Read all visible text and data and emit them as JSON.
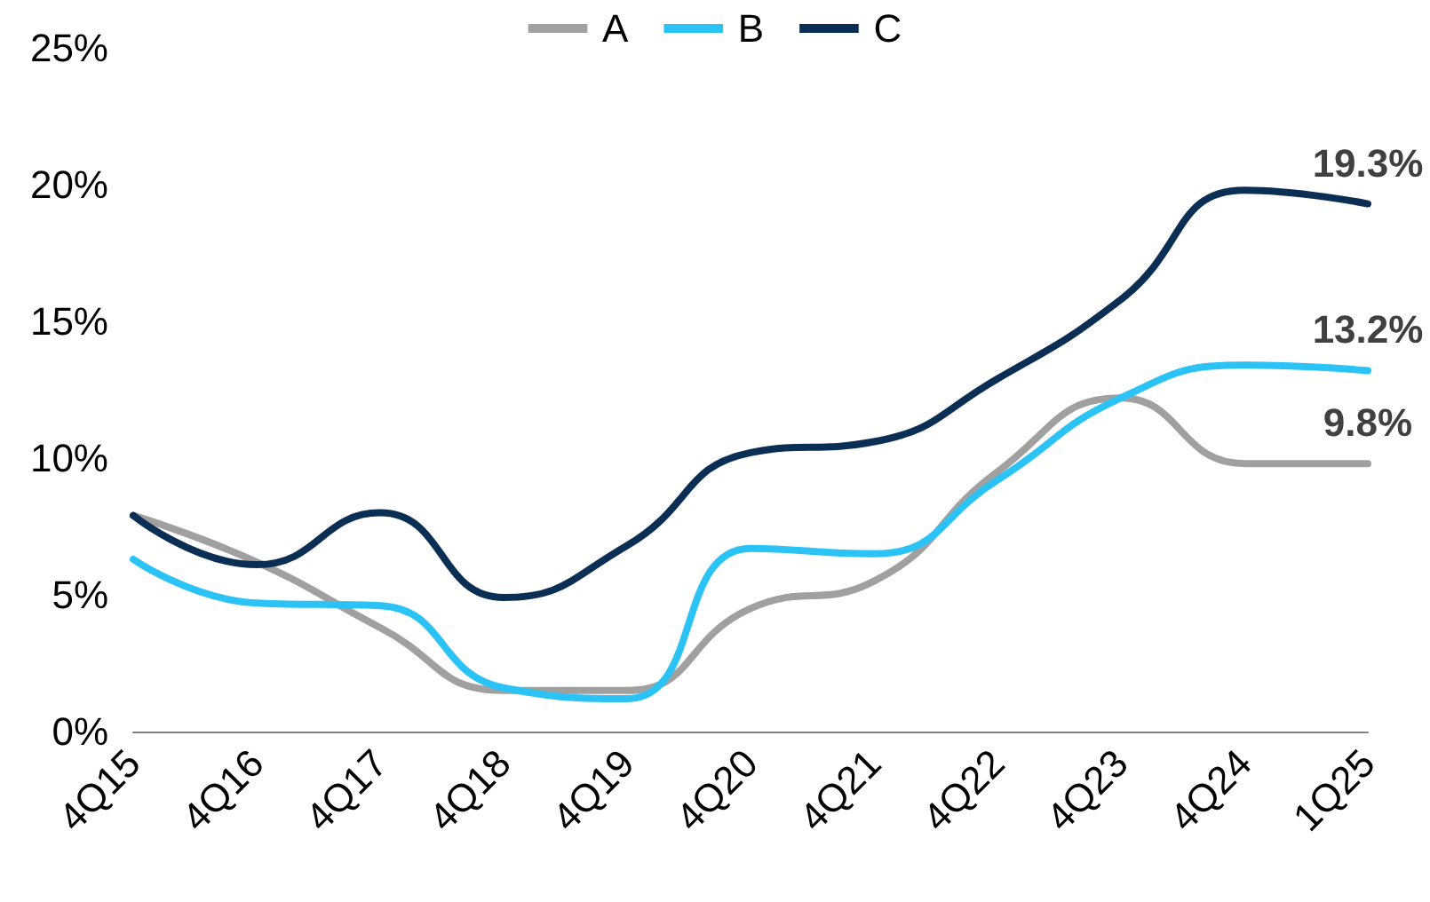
{
  "chart_data": {
    "type": "line",
    "categories": [
      "4Q15",
      "4Q16",
      "4Q17",
      "4Q18",
      "4Q19",
      "4Q20",
      "4Q21",
      "4Q22",
      "4Q23",
      "4Q24",
      "1Q25"
    ],
    "series": [
      {
        "name": "A",
        "color": "#a0a0a0",
        "values": [
          7.9,
          6.2,
          3.8,
          1.5,
          1.5,
          4.5,
          5.5,
          9.5,
          12.2,
          9.8,
          9.8
        ],
        "value_labels": [
          null,
          null,
          null,
          null,
          null,
          null,
          null,
          null,
          null,
          null,
          "9.8%"
        ]
      },
      {
        "name": "B",
        "color": "#2bc3f5",
        "values": [
          6.3,
          4.7,
          4.6,
          1.6,
          1.2,
          6.7,
          6.5,
          9.2,
          12.2,
          13.4,
          13.2
        ],
        "value_labels": [
          null,
          null,
          null,
          null,
          null,
          null,
          null,
          null,
          null,
          null,
          "13.2%"
        ]
      },
      {
        "name": "C",
        "color": "#0b2f54",
        "values": [
          7.9,
          6.1,
          8.0,
          4.9,
          6.8,
          10.2,
          10.6,
          12.9,
          15.8,
          19.8,
          19.3
        ],
        "value_labels": [
          null,
          null,
          null,
          null,
          null,
          null,
          null,
          null,
          null,
          null,
          "19.3%"
        ]
      }
    ],
    "ylim": [
      0,
      25
    ],
    "yticks": [
      {
        "value": 0,
        "label": "0%"
      },
      {
        "value": 5,
        "label": "5%"
      },
      {
        "value": 10,
        "label": "10%"
      },
      {
        "value": 15,
        "label": "15%"
      },
      {
        "value": 20,
        "label": "20%"
      },
      {
        "value": 25,
        "label": "25%"
      }
    ],
    "grid": false,
    "legend": "top",
    "marker": "none",
    "line_style": "solid"
  }
}
